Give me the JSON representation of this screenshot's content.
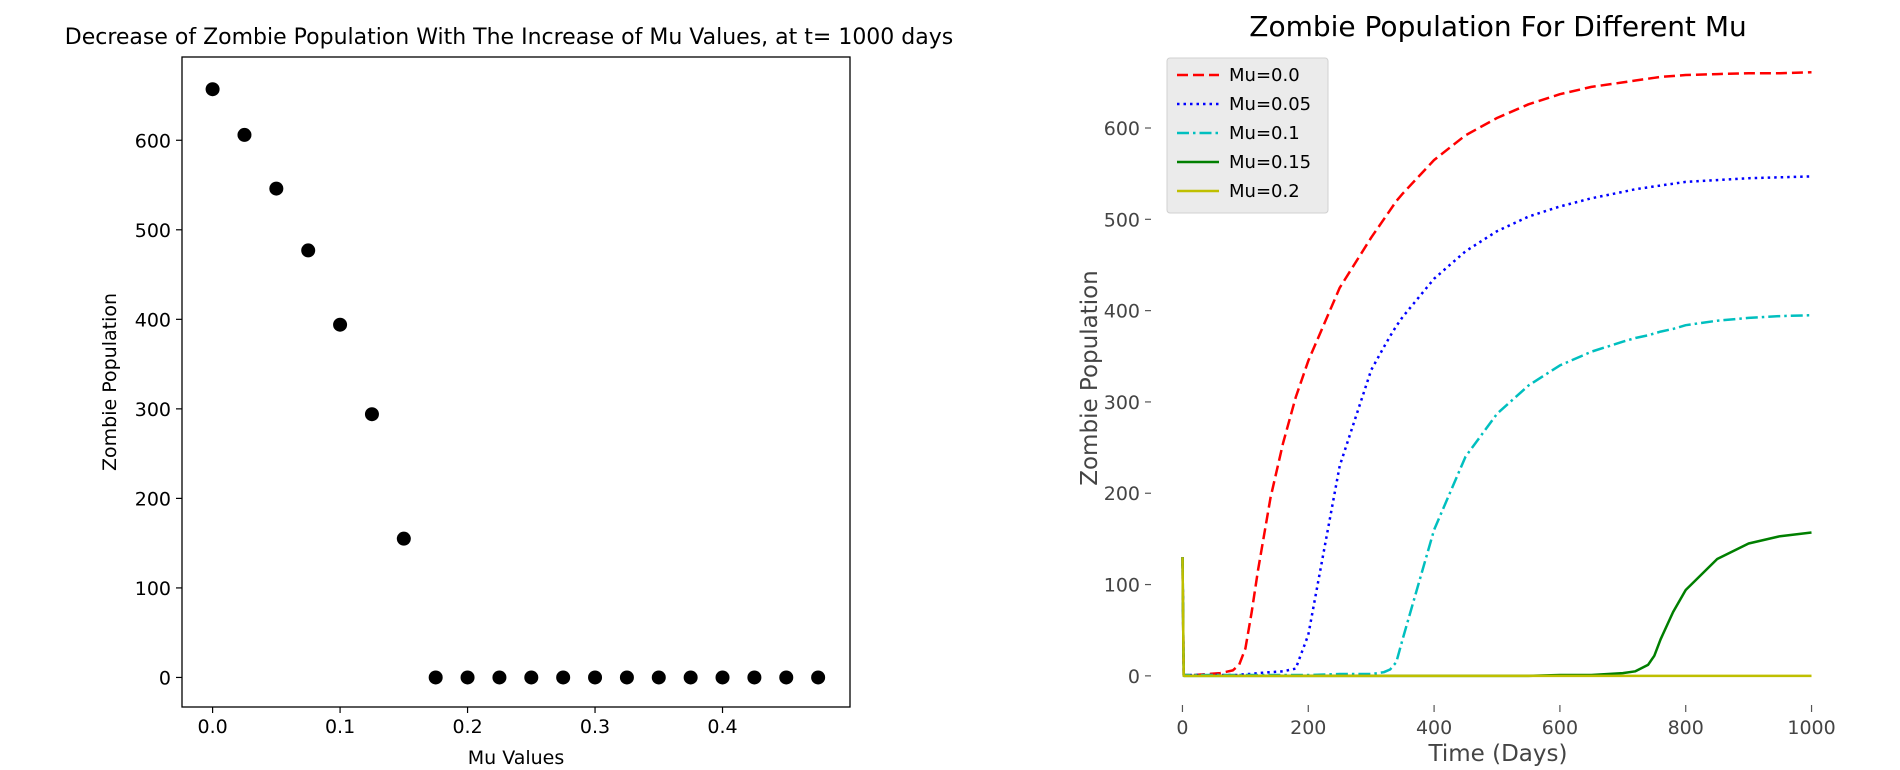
{
  "chart_data": [
    {
      "type": "scatter",
      "title": "Decrease of Zombie Population With The Increase of Mu Values, at t= 1000 days",
      "xlabel": "Mu Values",
      "ylabel": "Zombie Population",
      "xlim": [
        -0.024,
        0.5
      ],
      "ylim": [
        -33,
        693
      ],
      "xticks": [
        0.0,
        0.1,
        0.2,
        0.3,
        0.4
      ],
      "xtick_labels": [
        "0.0",
        "0.1",
        "0.2",
        "0.3",
        "0.4"
      ],
      "yticks": [
        0,
        100,
        200,
        300,
        400,
        500,
        600
      ],
      "ytick_labels": [
        "0",
        "100",
        "200",
        "300",
        "400",
        "500",
        "600"
      ],
      "grid": false,
      "marker_color": "#000000",
      "x": [
        0.0,
        0.025,
        0.05,
        0.075,
        0.1,
        0.125,
        0.15,
        0.175,
        0.2,
        0.225,
        0.25,
        0.275,
        0.3,
        0.325,
        0.35,
        0.375,
        0.4,
        0.425,
        0.45,
        0.475
      ],
      "y": [
        657,
        606,
        546,
        477,
        394,
        294,
        155,
        0,
        0,
        0,
        0,
        0,
        0,
        0,
        0,
        0,
        0,
        0,
        0,
        0
      ]
    },
    {
      "type": "line",
      "title": "Zombie Population For Different Mu",
      "xlabel": "Time (Days)",
      "ylabel": "Zombie Population",
      "xlim": [
        -50,
        1050
      ],
      "ylim": [
        -33,
        692
      ],
      "xticks": [
        0,
        200,
        400,
        600,
        800,
        1000
      ],
      "xtick_labels": [
        "0",
        "200",
        "400",
        "600",
        "800",
        "1000"
      ],
      "yticks": [
        0,
        100,
        200,
        300,
        400,
        500,
        600
      ],
      "ytick_labels": [
        "0",
        "100",
        "200",
        "300",
        "400",
        "500",
        "600"
      ],
      "grid": false,
      "legend_position": "top-left",
      "x": [
        0,
        2,
        10,
        20,
        40,
        60,
        80,
        90,
        100,
        110,
        120,
        140,
        160,
        180,
        200,
        250,
        300,
        320,
        330,
        340,
        350,
        400,
        450,
        500,
        550,
        600,
        650,
        700,
        720,
        740,
        750,
        760,
        780,
        800,
        850,
        900,
        950,
        1000
      ],
      "series": [
        {
          "name": "Mu=0.0",
          "color": "#ff0000",
          "dash": "dashed",
          "values": [
            130,
            1,
            1,
            1,
            2,
            3,
            6,
            12,
            30,
            70,
            115,
            195,
            255,
            305,
            345,
            425,
            480,
            500,
            510,
            520,
            528,
            565,
            592,
            611,
            626,
            637,
            645,
            650,
            652,
            654,
            655,
            656,
            657,
            658,
            659,
            660,
            660,
            661
          ]
        },
        {
          "name": "Mu=0.05",
          "color": "#0000ff",
          "dash": "dotted",
          "values": [
            130,
            1,
            1,
            1,
            1,
            1,
            1,
            1,
            2,
            2,
            3,
            4,
            5,
            8,
            45,
            230,
            335,
            360,
            372,
            383,
            393,
            435,
            465,
            487,
            503,
            514,
            523,
            530,
            533,
            535,
            536,
            537,
            539,
            541,
            543,
            545,
            546,
            547
          ]
        },
        {
          "name": "Mu=0.1",
          "color": "#00bfbf",
          "dash": "dashdot",
          "values": [
            130,
            1,
            1,
            1,
            1,
            1,
            1,
            1,
            1,
            1,
            1,
            1,
            1,
            1,
            1,
            2,
            2,
            4,
            7,
            15,
            40,
            160,
            240,
            287,
            318,
            340,
            355,
            366,
            370,
            373,
            375,
            377,
            380,
            384,
            389,
            392,
            394,
            395
          ]
        },
        {
          "name": "Mu=0.15",
          "color": "#007f00",
          "dash": "solid",
          "values": [
            130,
            0,
            0,
            0,
            0,
            0,
            0,
            0,
            0,
            0,
            0,
            0,
            0,
            0,
            0,
            0,
            0,
            0,
            0,
            0,
            0,
            0,
            0,
            0,
            0,
            1,
            1,
            3,
            5,
            12,
            22,
            40,
            70,
            94,
            128,
            145,
            153,
            157
          ]
        },
        {
          "name": "Mu=0.2",
          "color": "#bfbf00",
          "dash": "solid",
          "values": [
            130,
            0,
            0,
            0,
            0,
            0,
            0,
            0,
            0,
            0,
            0,
            0,
            0,
            0,
            0,
            0,
            0,
            0,
            0,
            0,
            0,
            0,
            0,
            0,
            0,
            0,
            0,
            0,
            0,
            0,
            0,
            0,
            0,
            0,
            0,
            0,
            0,
            0
          ]
        }
      ]
    }
  ]
}
